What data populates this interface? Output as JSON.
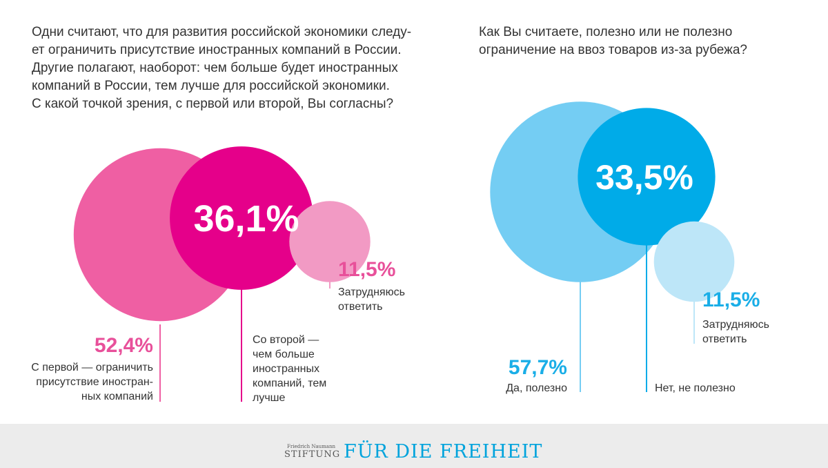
{
  "left_chart": {
    "question_lines": [
      "Одни считают, что для развития российской экономики следу-",
      "ет ограничить присутствие иностранных компаний в России.",
      "Другие полагают, наоборот: чем больше будет иностранных",
      "компаний в России, тем лучше для российской экономики.",
      "С какой точкой зрения, с первой или второй, Вы согласны?"
    ]
  },
  "right_chart": {
    "question_lines": [
      "Как Вы считаете, полезно или не полезно",
      "ограничение на ввоз товаров из-за рубежа?"
    ]
  },
  "colors": {
    "pink_light": "#ef5fa3",
    "pink_dark": "#e5008a",
    "pink_small": "#f29ac4",
    "pink_text": "#e8509a",
    "blue_light": "#74cdf3",
    "blue_dark": "#00abe8",
    "blue_small": "#bde6f8",
    "blue_text": "#1aaee7",
    "label_text": "#333333"
  },
  "chart_data": [
    {
      "type": "bubble",
      "title": "Одни считают, что для развития российской экономики следует ограничить присутствие иностранных компаний в России. Другие полагают, наоборот: чем больше будет иностранных компаний в России, тем лучше для российской экономики. С какой точкой зрения, с первой или второй, Вы согласны?",
      "unit": "%",
      "series": [
        {
          "id": "first",
          "value_label": "52,4%",
          "value": 52.4,
          "label_lines": [
            "С первой — ограничить",
            "присутствие иностран-",
            "ных компаний"
          ]
        },
        {
          "id": "second",
          "value_label": "36,1%",
          "value": 36.1,
          "label_lines": [
            "Со второй —",
            "чем больше",
            "иностранных",
            "компаний, тем",
            "лучше"
          ]
        },
        {
          "id": "unsure",
          "value_label": "11,5%",
          "value": 11.5,
          "label_lines": [
            "Затрудняюсь",
            "ответить"
          ]
        }
      ]
    },
    {
      "type": "bubble",
      "title": "Как Вы считаете, полезно или не полезно ограничение на ввоз товаров из-за рубежа?",
      "unit": "%",
      "series": [
        {
          "id": "yes",
          "value_label": "57,7%",
          "value": 57.7,
          "label_lines": [
            "Да, полезно"
          ]
        },
        {
          "id": "no",
          "value_label": "33,5%",
          "value": 33.5,
          "label_lines": [
            "Нет, не полезно"
          ]
        },
        {
          "id": "unsure",
          "value_label": "11,5%",
          "value": 11.5,
          "label_lines": [
            "Затрудняюсь",
            "ответить"
          ]
        }
      ]
    }
  ],
  "footer": {
    "logo_line1": "Friedrich Naumann",
    "logo_line2": "STIFTUNG",
    "logo_main": "FÜR DIE FREIHEIT"
  }
}
